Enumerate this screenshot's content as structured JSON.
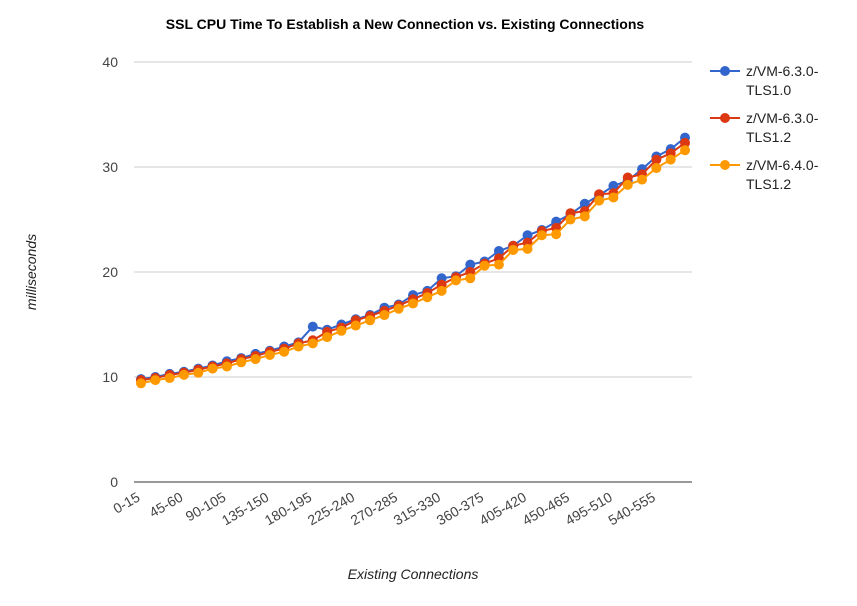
{
  "chart_data": {
    "type": "line",
    "title": "SSL CPU Time To Establish a New Connection vs. Existing Connections",
    "xlabel": "Existing Connections",
    "ylabel": "milliseconds",
    "categories": [
      "0-15",
      null,
      null,
      "45-60",
      null,
      null,
      "90-105",
      null,
      null,
      "135-150",
      null,
      null,
      "180-195",
      null,
      null,
      "225-240",
      null,
      null,
      "270-285",
      null,
      null,
      "315-330",
      null,
      null,
      "360-375",
      null,
      null,
      "405-420",
      null,
      null,
      "450-465",
      null,
      null,
      "495-510",
      null,
      null,
      "540-555",
      null,
      null
    ],
    "series": [
      {
        "name": "z/VM-6.3.0-TLS1.0",
        "color": "#3366cc",
        "values": [
          9.8,
          10.0,
          10.3,
          10.5,
          10.8,
          11.1,
          11.5,
          11.8,
          12.2,
          12.5,
          12.9,
          13.3,
          14.8,
          14.5,
          15.0,
          15.5,
          15.9,
          16.6,
          16.9,
          17.8,
          18.2,
          19.4,
          19.6,
          20.7,
          21.0,
          22.0,
          22.5,
          23.5,
          24.0,
          24.8,
          25.5,
          26.5,
          27.3,
          28.2,
          28.7,
          29.8,
          31.0,
          31.7,
          32.8
        ]
      },
      {
        "name": "z/VM-6.3.0-TLS1.2",
        "color": "#dc3912",
        "values": [
          9.7,
          9.9,
          10.2,
          10.4,
          10.7,
          11.0,
          11.3,
          11.7,
          12.0,
          12.4,
          12.7,
          13.2,
          13.5,
          14.3,
          14.7,
          15.4,
          15.8,
          16.3,
          16.8,
          17.4,
          18.0,
          18.8,
          19.5,
          20.0,
          20.8,
          21.3,
          22.5,
          22.8,
          23.9,
          24.2,
          25.6,
          25.8,
          27.4,
          27.5,
          29.0,
          29.3,
          30.7,
          31.3,
          32.3
        ]
      },
      {
        "name": "z/VM-6.4.0-TLS1.2",
        "color": "#ff9900",
        "values": [
          9.4,
          9.7,
          9.9,
          10.2,
          10.4,
          10.8,
          11.0,
          11.4,
          11.7,
          12.1,
          12.4,
          12.9,
          13.2,
          13.8,
          14.4,
          14.9,
          15.4,
          15.9,
          16.5,
          17.0,
          17.6,
          18.2,
          19.2,
          19.4,
          20.6,
          20.7,
          22.1,
          22.2,
          23.5,
          23.6,
          25.0,
          25.3,
          26.8,
          27.1,
          28.3,
          28.8,
          29.9,
          30.7,
          31.6
        ]
      }
    ],
    "ylim": [
      0,
      40
    ],
    "yticks": [
      0,
      10,
      20,
      30,
      40
    ],
    "grid": true,
    "legend": "right"
  }
}
